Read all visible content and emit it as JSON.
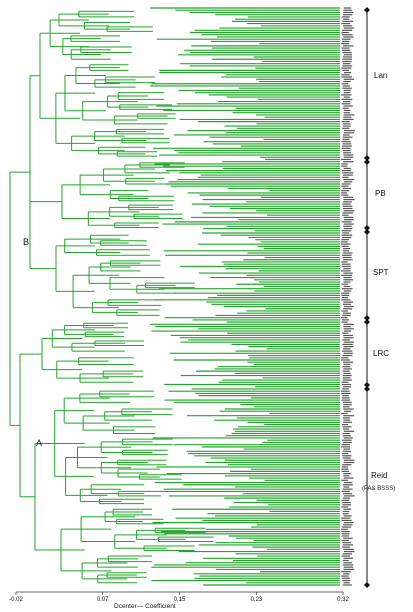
{
  "chart_data": {
    "type": "dendrogram",
    "xlabel": "Dcenter— Coefficient",
    "xlim": [
      -0.02,
      0.32
    ],
    "xticks": [
      "-0.02",
      "0.07",
      "0.15",
      "0.23",
      "0.32"
    ],
    "xtick_values": [
      -0.02,
      0.07,
      0.15,
      0.23,
      0.32
    ],
    "clusters": [
      {
        "label": "B",
        "groups": [
          "Lan",
          "PB",
          "SPT"
        ]
      },
      {
        "label": "A",
        "groups": [
          "LRC",
          "Reid"
        ]
      }
    ],
    "groups": [
      {
        "label": "Lan",
        "sublabel": ""
      },
      {
        "label": "PB",
        "sublabel": ""
      },
      {
        "label": "SPT",
        "sublabel": ""
      },
      {
        "label": "LRC",
        "sublabel": ""
      },
      {
        "label": "Reid",
        "sublabel": "(PA& BSSS)"
      }
    ],
    "leaf_color": "#22a52a"
  }
}
